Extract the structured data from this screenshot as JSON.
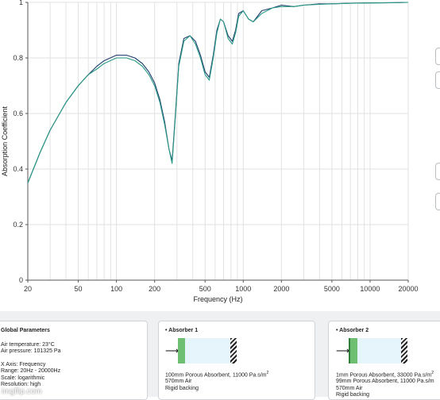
{
  "chart_data": {
    "type": "line",
    "xlabel": "Frequency (Hz)",
    "ylabel": "Absorption Coefficient",
    "xscale": "log",
    "xlim": [
      20,
      20000
    ],
    "ylim": [
      0,
      1
    ],
    "grid": true,
    "xticks": [
      "20",
      "50",
      "100",
      "200",
      "500",
      "1000",
      "2000",
      "5000",
      "10000",
      "20000"
    ],
    "yticks": [
      "0",
      "0.2",
      "0.4",
      "0.6",
      "0.8",
      "1"
    ],
    "series": [
      {
        "color": "#1f3f6e",
        "x": [
          20,
          25,
          30,
          40,
          50,
          60,
          70,
          80,
          100,
          120,
          140,
          160,
          180,
          200,
          220,
          240,
          260,
          275,
          290,
          310,
          340,
          380,
          420,
          460,
          500,
          540,
          580,
          620,
          660,
          700,
          760,
          820,
          870,
          920,
          1000,
          1100,
          1200,
          1400,
          1700,
          2000,
          2500,
          3000,
          4000,
          5000,
          7000,
          10000,
          15000,
          20000
        ],
        "y": [
          0.35,
          0.46,
          0.54,
          0.64,
          0.7,
          0.74,
          0.77,
          0.79,
          0.81,
          0.81,
          0.8,
          0.78,
          0.75,
          0.71,
          0.65,
          0.57,
          0.47,
          0.43,
          0.58,
          0.78,
          0.87,
          0.88,
          0.86,
          0.81,
          0.75,
          0.73,
          0.81,
          0.9,
          0.94,
          0.93,
          0.88,
          0.86,
          0.9,
          0.96,
          0.97,
          0.94,
          0.93,
          0.97,
          0.98,
          0.99,
          0.985,
          0.99,
          0.995,
          0.995,
          0.997,
          0.998,
          0.999,
          1.0
        ]
      },
      {
        "color": "#2a9a86",
        "x": [
          20,
          25,
          30,
          40,
          50,
          60,
          70,
          80,
          100,
          120,
          140,
          160,
          180,
          200,
          220,
          240,
          260,
          275,
          290,
          310,
          340,
          380,
          420,
          460,
          500,
          540,
          580,
          620,
          660,
          700,
          760,
          820,
          870,
          920,
          1000,
          1100,
          1200,
          1400,
          1700,
          2000,
          2500,
          3000,
          4000,
          5000,
          7000,
          10000,
          15000,
          20000
        ],
        "y": [
          0.35,
          0.46,
          0.54,
          0.64,
          0.7,
          0.74,
          0.76,
          0.78,
          0.8,
          0.8,
          0.79,
          0.77,
          0.74,
          0.7,
          0.64,
          0.56,
          0.47,
          0.42,
          0.57,
          0.77,
          0.86,
          0.88,
          0.85,
          0.8,
          0.74,
          0.72,
          0.8,
          0.89,
          0.94,
          0.93,
          0.87,
          0.85,
          0.89,
          0.95,
          0.97,
          0.94,
          0.93,
          0.96,
          0.98,
          0.985,
          0.985,
          0.99,
          0.993,
          0.995,
          0.997,
          0.998,
          0.999,
          1.0
        ]
      }
    ]
  },
  "global": {
    "title": "Global Parameters",
    "air_temperature": "Air temperature: 23°C",
    "air_pressure": "Air pressure: 101325 Pa",
    "x_axis": "X Axis: Frequency",
    "range": "Range: 20Hz - 20000Hz",
    "scale": "Scale: logarithmic",
    "resolution": "Resolution: high"
  },
  "absorbers": [
    {
      "title": "• Absorber 1",
      "layer": "100mm Porous Absorbent, 11000 Pa.s/m",
      "layer_sup": "2",
      "air": "570mm Air",
      "backing": "Rigid backing"
    },
    {
      "title": "• Absorber 2",
      "layer": "1mm Porous Absorbent, 33000 Pa.s/m",
      "layer_sup": "2",
      "layer2": "99mm Porous Absorbent, 11000 Pa.s/m",
      "air": "570mm Air",
      "backing": "Rigid backing"
    }
  ],
  "watermark": "imgflip.com"
}
